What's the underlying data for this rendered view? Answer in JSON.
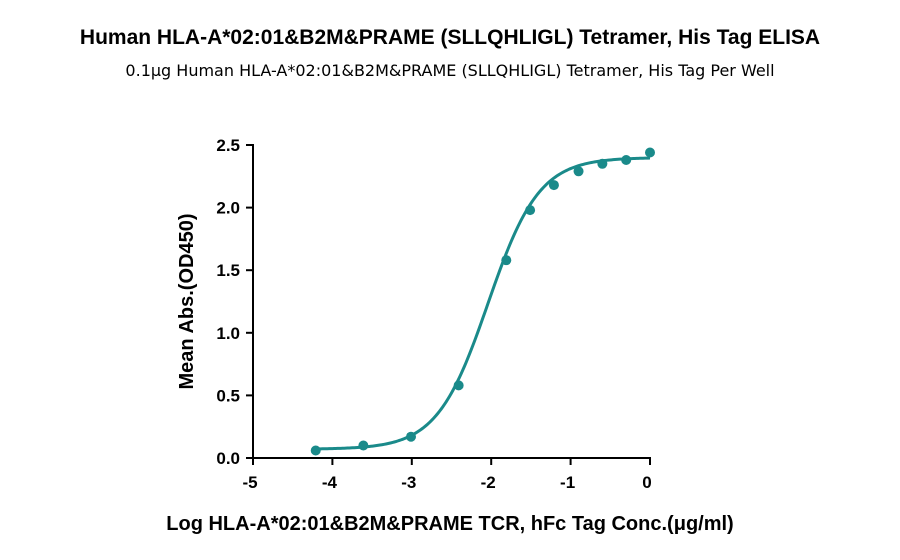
{
  "chart_data": {
    "type": "scatter",
    "title": "Human HLA-A*02:01&B2M&PRAME (SLLQHLIGL) Tetramer, His Tag ELISA",
    "subtitle": "0.1μg Human HLA-A*02:01&B2M&PRAME (SLLQHLIGL) Tetramer, His Tag Per Well",
    "xlabel": "Log HLA-A*02:01&B2M&PRAME TCR, hFc Tag Conc.(μg/ml)",
    "ylabel": "Mean Abs.(OD450)",
    "xlim": [
      -5,
      0
    ],
    "ylim": [
      0,
      2.5
    ],
    "x_ticks": [
      -5,
      -4,
      -3,
      -2,
      -1,
      0
    ],
    "y_ticks": [
      0.0,
      0.5,
      1.0,
      1.5,
      2.0,
      2.5
    ],
    "x_tick_labels": [
      "-5",
      "-4",
      "-3",
      "-2",
      "-1",
      "0"
    ],
    "y_tick_labels": [
      "0.0",
      "0.5",
      "1.0",
      "1.5",
      "2.0",
      "2.5"
    ],
    "grid": false,
    "color": "#1a8a8a",
    "series": [
      {
        "x": [
          -4.21,
          -3.61,
          -3.01,
          -2.41,
          -1.81,
          -1.51,
          -1.21,
          -0.9,
          -0.6,
          -0.3,
          0.0
        ],
        "y": [
          0.06,
          0.1,
          0.17,
          0.58,
          1.58,
          1.98,
          2.18,
          2.29,
          2.35,
          2.38,
          2.44
        ]
      }
    ],
    "fit": {
      "model": "4PL",
      "bottom": 0.07,
      "top": 2.4,
      "logEC50": -2.04,
      "hill": 1.35
    }
  }
}
